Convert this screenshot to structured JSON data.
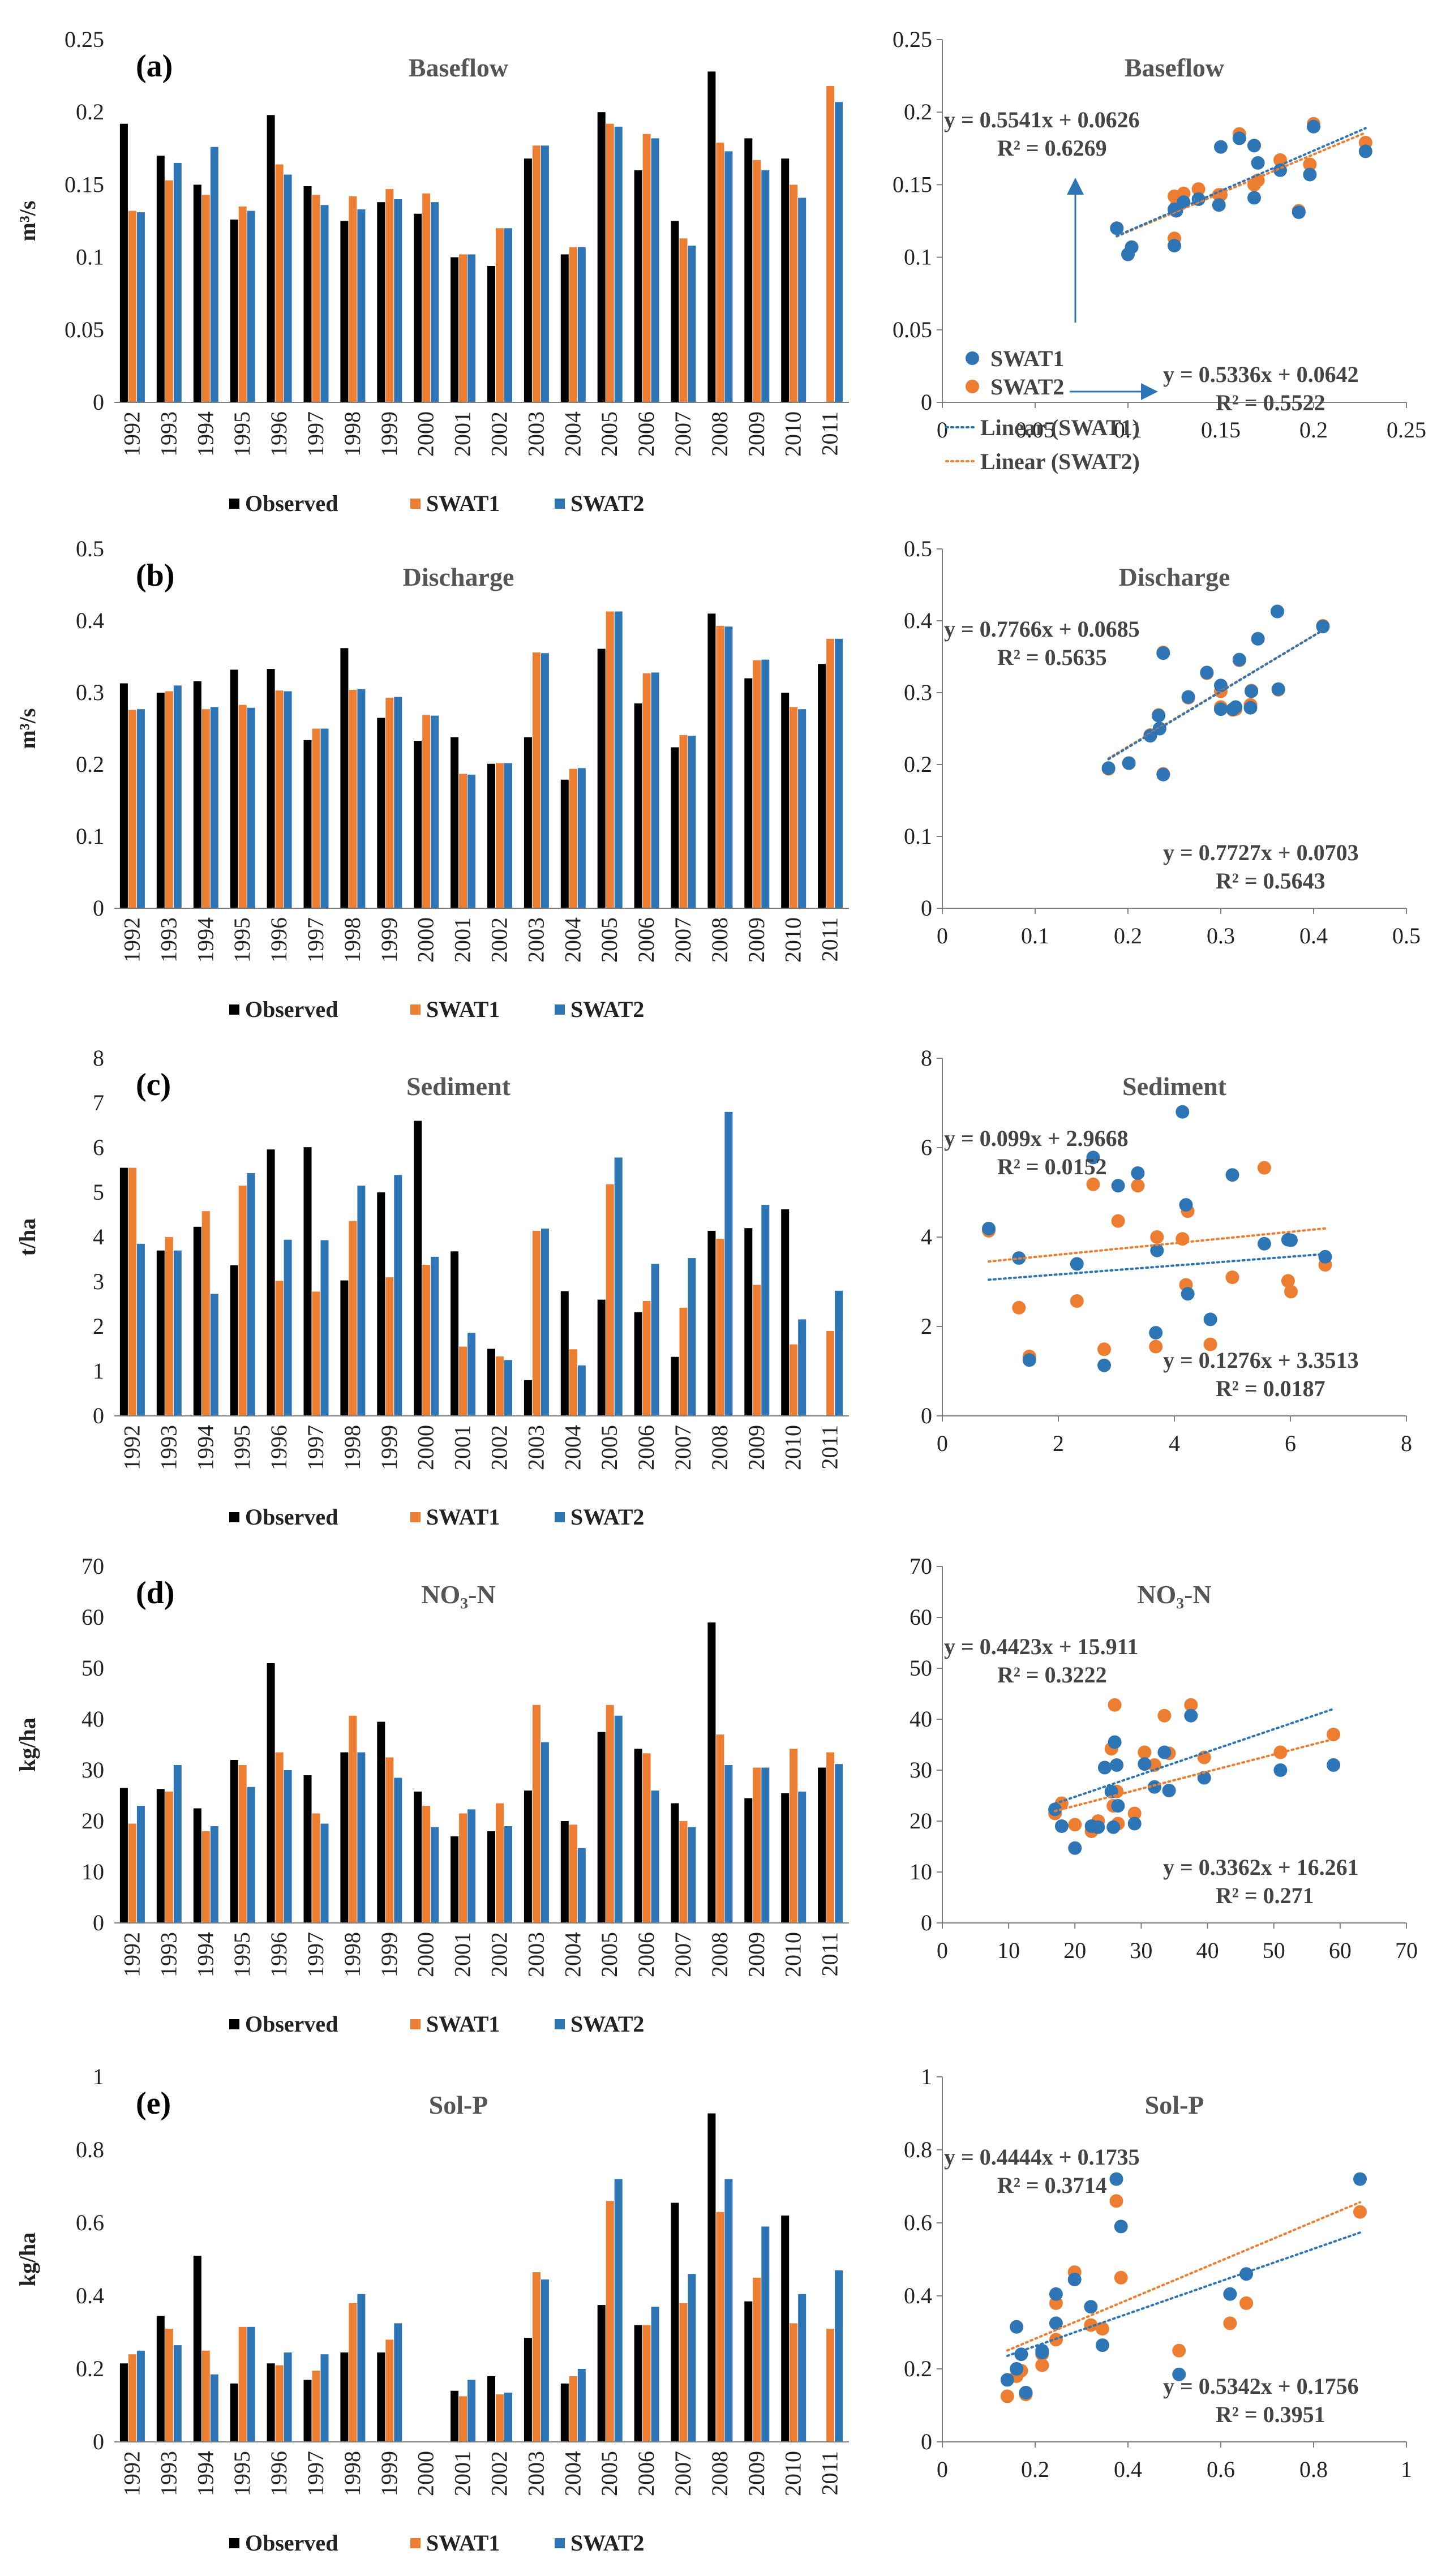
{
  "legend_labels": {
    "observed": "Observed",
    "swat1": "SWAT1",
    "swat2": "SWAT2",
    "linear1": "Linear (SWAT1)",
    "linear2": "Linear (SWAT2)"
  },
  "colors": {
    "observed": "#000000",
    "swat1": "#ED7D31",
    "swat2": "#2E75B6",
    "axis": "#000000",
    "arrow": "#2E75B6"
  },
  "chart_data": [
    {
      "type": "bar",
      "panel": "(a)",
      "title": "Baseflow",
      "ylabel": "m³/s",
      "ylim": [
        0,
        0.25
      ],
      "yticks": [
        "0",
        "0.05",
        "0.1",
        "0.15",
        "0.2",
        "0.25"
      ],
      "categories": [
        "1992",
        "1993",
        "1994",
        "1995",
        "1996",
        "1997",
        "1998",
        "1999",
        "2000",
        "2001",
        "2002",
        "2003",
        "2004",
        "2005",
        "2006",
        "2007",
        "2008",
        "2009",
        "2010",
        "2011"
      ],
      "series": [
        {
          "name": "Observed",
          "values": [
            0.192,
            0.17,
            0.15,
            0.126,
            0.198,
            0.149,
            0.125,
            0.138,
            0.13,
            0.1,
            0.094,
            0.168,
            0.102,
            0.2,
            0.16,
            0.125,
            0.228,
            0.182,
            0.168,
            null
          ]
        },
        {
          "name": "SWAT1",
          "values": [
            0.132,
            0.153,
            0.143,
            0.135,
            0.164,
            0.143,
            0.142,
            0.147,
            0.144,
            0.102,
            0.12,
            0.177,
            0.107,
            0.192,
            0.185,
            0.113,
            0.179,
            0.167,
            0.15,
            0.218
          ]
        },
        {
          "name": "SWAT2",
          "values": [
            0.131,
            0.165,
            0.176,
            0.132,
            0.157,
            0.136,
            0.133,
            0.14,
            0.138,
            0.102,
            0.12,
            0.177,
            0.107,
            0.19,
            0.182,
            0.108,
            0.173,
            0.16,
            0.141,
            0.207
          ]
        }
      ]
    },
    {
      "type": "bar",
      "panel": "(b)",
      "title": "Discharge",
      "ylabel": "m³/s",
      "ylim": [
        0,
        0.5
      ],
      "yticks": [
        "0",
        "0.1",
        "0.2",
        "0.3",
        "0.4",
        "0.5"
      ],
      "categories": [
        "1992",
        "1993",
        "1994",
        "1995",
        "1996",
        "1997",
        "1998",
        "1999",
        "2000",
        "2001",
        "2002",
        "2003",
        "2004",
        "2005",
        "2006",
        "2007",
        "2008",
        "2009",
        "2010",
        "2011"
      ],
      "series": [
        {
          "name": "Observed",
          "values": [
            0.313,
            0.3,
            0.316,
            0.332,
            0.333,
            0.234,
            0.362,
            0.265,
            0.233,
            0.238,
            0.201,
            0.238,
            0.179,
            0.361,
            0.285,
            0.224,
            0.41,
            0.32,
            0.3,
            0.34
          ]
        },
        {
          "name": "SWAT1",
          "values": [
            0.276,
            0.302,
            0.277,
            0.283,
            0.303,
            0.25,
            0.304,
            0.293,
            0.269,
            0.187,
            0.202,
            0.356,
            0.194,
            0.413,
            0.327,
            0.241,
            0.393,
            0.345,
            0.28,
            0.375
          ]
        },
        {
          "name": "SWAT2",
          "values": [
            0.277,
            0.31,
            0.28,
            0.279,
            0.302,
            0.25,
            0.305,
            0.294,
            0.268,
            0.186,
            0.202,
            0.355,
            0.195,
            0.413,
            0.328,
            0.24,
            0.392,
            0.346,
            0.277,
            0.375
          ]
        }
      ]
    },
    {
      "type": "bar",
      "panel": "(c)",
      "title": "Sediment",
      "ylabel": "t/ha",
      "ylim": [
        0,
        8
      ],
      "yticks": [
        "0",
        "1",
        "2",
        "3",
        "4",
        "5",
        "6",
        "7",
        "8"
      ],
      "categories": [
        "1992",
        "1993",
        "1994",
        "1995",
        "1996",
        "1997",
        "1998",
        "1999",
        "2000",
        "2001",
        "2002",
        "2003",
        "2004",
        "2005",
        "2006",
        "2007",
        "2008",
        "2009",
        "2010",
        "2011"
      ],
      "series": [
        {
          "name": "Observed",
          "values": [
            5.55,
            3.7,
            4.23,
            3.37,
            5.96,
            6.01,
            3.03,
            5.0,
            6.6,
            3.68,
            1.5,
            0.8,
            2.79,
            2.6,
            2.32,
            1.32,
            4.14,
            4.2,
            4.62,
            null
          ]
        },
        {
          "name": "SWAT1",
          "values": [
            5.55,
            4.0,
            4.58,
            5.15,
            3.02,
            2.78,
            4.36,
            3.1,
            3.38,
            1.55,
            1.33,
            4.14,
            1.49,
            5.18,
            2.57,
            2.42,
            3.96,
            2.93,
            1.6,
            1.9
          ]
        },
        {
          "name": "SWAT2",
          "values": [
            3.85,
            3.7,
            2.73,
            5.43,
            3.94,
            3.93,
            5.15,
            5.39,
            3.56,
            1.86,
            1.25,
            4.19,
            1.13,
            5.78,
            3.4,
            3.53,
            6.8,
            4.72,
            2.16,
            2.8
          ]
        }
      ]
    },
    {
      "type": "bar",
      "panel": "(d)",
      "title": "NO₃-N",
      "ylabel": "kg/ha",
      "ylim": [
        0,
        70
      ],
      "yticks": [
        "0",
        "10",
        "20",
        "30",
        "40",
        "50",
        "60",
        "70"
      ],
      "categories": [
        "1992",
        "1993",
        "1994",
        "1995",
        "1996",
        "1997",
        "1998",
        "1999",
        "2000",
        "2001",
        "2002",
        "2003",
        "2004",
        "2005",
        "2006",
        "2007",
        "2008",
        "2009",
        "2010",
        "2011"
      ],
      "series": [
        {
          "name": "Observed",
          "values": [
            26.5,
            26.3,
            22.5,
            32.0,
            51.0,
            29.0,
            33.5,
            39.5,
            25.8,
            17.0,
            18.0,
            26.0,
            20.0,
            37.5,
            34.2,
            23.5,
            59.0,
            24.5,
            25.5,
            30.5
          ]
        },
        {
          "name": "SWAT1",
          "values": [
            19.5,
            25.8,
            18.0,
            31.0,
            33.5,
            21.5,
            40.7,
            32.5,
            23.0,
            21.5,
            23.5,
            42.8,
            19.3,
            42.8,
            33.3,
            20.0,
            37.0,
            30.5,
            34.2,
            33.5
          ]
        },
        {
          "name": "SWAT2",
          "values": [
            23.0,
            31.0,
            19.0,
            26.7,
            30.0,
            19.5,
            33.5,
            28.5,
            18.8,
            22.3,
            19.0,
            35.5,
            14.7,
            40.7,
            26.0,
            18.8,
            31.0,
            30.5,
            25.8,
            31.2
          ]
        }
      ]
    },
    {
      "type": "bar",
      "panel": "(e)",
      "title": "Sol-P",
      "ylabel": "kg/ha",
      "ylim": [
        0,
        1
      ],
      "yticks": [
        "0",
        "0.2",
        "0.4",
        "0.6",
        "0.8",
        "1"
      ],
      "categories": [
        "1992",
        "1993",
        "1994",
        "1995",
        "1996",
        "1997",
        "1998",
        "1999",
        "2000",
        "2001",
        "2002",
        "2003",
        "2004",
        "2005",
        "2006",
        "2007",
        "2008",
        "2009",
        "2010",
        "2011"
      ],
      "series": [
        {
          "name": "Observed",
          "values": [
            0.215,
            0.345,
            0.51,
            0.16,
            0.215,
            0.17,
            0.245,
            0.245,
            null,
            0.14,
            0.18,
            0.285,
            0.16,
            0.375,
            0.32,
            0.655,
            0.9,
            0.385,
            0.62,
            null
          ]
        },
        {
          "name": "SWAT1",
          "values": [
            0.24,
            0.31,
            0.25,
            0.315,
            0.21,
            0.195,
            0.38,
            0.28,
            null,
            0.125,
            0.13,
            0.465,
            0.18,
            0.66,
            0.32,
            0.38,
            0.63,
            0.45,
            0.325,
            0.31
          ]
        },
        {
          "name": "SWAT2",
          "values": [
            0.25,
            0.265,
            0.185,
            0.315,
            0.245,
            0.24,
            0.405,
            0.325,
            null,
            0.17,
            0.135,
            0.445,
            0.2,
            0.72,
            0.37,
            0.46,
            0.72,
            0.59,
            0.405,
            0.47
          ]
        }
      ]
    },
    {
      "type": "scatter",
      "title": "Baseflow",
      "xlim": [
        0,
        0.25
      ],
      "ylim": [
        0,
        0.25
      ],
      "xticks": [
        "0",
        "0.05",
        "0.1",
        "0.15",
        "0.2",
        "0.25"
      ],
      "yticks": [
        "0",
        "0.05",
        "0.1",
        "0.15",
        "0.2",
        "0.25"
      ],
      "eq1": "y = 0.5336x + 0.0642",
      "r2_1": "R² = 0.5522",
      "eq2": "y = 0.5541x + 0.0626",
      "r2_2": "R² = 0.6269",
      "fit1": [
        0.5336,
        0.0642
      ],
      "fit2": [
        0.5541,
        0.0626
      ],
      "x": [
        0.192,
        0.17,
        0.15,
        0.126,
        0.198,
        0.149,
        0.125,
        0.138,
        0.13,
        0.1,
        0.094,
        0.168,
        0.102,
        0.2,
        0.16,
        0.125,
        0.228,
        0.182,
        0.168
      ],
      "swat1": [
        0.132,
        0.153,
        0.143,
        0.135,
        0.164,
        0.143,
        0.142,
        0.147,
        0.144,
        0.102,
        0.12,
        0.177,
        0.107,
        0.192,
        0.185,
        0.113,
        0.179,
        0.167,
        0.15
      ],
      "swat2": [
        0.131,
        0.165,
        0.176,
        0.132,
        0.157,
        0.136,
        0.133,
        0.14,
        0.138,
        0.102,
        0.12,
        0.177,
        0.107,
        0.19,
        0.182,
        0.108,
        0.173,
        0.16,
        0.141
      ]
    },
    {
      "type": "scatter",
      "title": "Discharge",
      "xlim": [
        0,
        0.5
      ],
      "ylim": [
        0,
        0.5
      ],
      "xticks": [
        "0",
        "0.1",
        "0.2",
        "0.3",
        "0.4",
        "0.5"
      ],
      "yticks": [
        "0",
        "0.1",
        "0.2",
        "0.3",
        "0.4",
        "0.5"
      ],
      "eq1": "y = 0.7727x + 0.0703",
      "r2_1": "R² = 0.5643",
      "eq2": "y = 0.7766x + 0.0685",
      "r2_2": "R² = 0.5635",
      "fit1": [
        0.7727,
        0.0703
      ],
      "fit2": [
        0.7766,
        0.0685
      ],
      "x": [
        0.313,
        0.3,
        0.316,
        0.332,
        0.333,
        0.234,
        0.362,
        0.265,
        0.233,
        0.238,
        0.201,
        0.238,
        0.179,
        0.361,
        0.285,
        0.224,
        0.41,
        0.32,
        0.3,
        0.34
      ],
      "swat1": [
        0.276,
        0.302,
        0.277,
        0.283,
        0.303,
        0.25,
        0.304,
        0.293,
        0.269,
        0.187,
        0.202,
        0.356,
        0.194,
        0.413,
        0.327,
        0.241,
        0.393,
        0.345,
        0.28,
        0.375
      ],
      "swat2": [
        0.277,
        0.31,
        0.28,
        0.279,
        0.302,
        0.25,
        0.305,
        0.294,
        0.268,
        0.186,
        0.202,
        0.355,
        0.195,
        0.413,
        0.328,
        0.24,
        0.392,
        0.346,
        0.277,
        0.375
      ]
    },
    {
      "type": "scatter",
      "title": "Sediment",
      "xlim": [
        0,
        8
      ],
      "ylim": [
        0,
        8
      ],
      "xticks": [
        "0",
        "2",
        "4",
        "6",
        "8"
      ],
      "yticks": [
        "0",
        "2",
        "4",
        "6",
        "8"
      ],
      "eq1": "y = 0.1276x + 3.3513",
      "r2_1": "R² = 0.0187",
      "eq2": "y = 0.099x + 2.9668",
      "r2_2": "R² = 0.0152",
      "fit1": [
        0.1276,
        3.3513
      ],
      "fit2": [
        0.099,
        2.9668
      ],
      "x": [
        5.55,
        3.7,
        4.23,
        3.37,
        5.96,
        6.01,
        3.03,
        5.0,
        6.6,
        3.68,
        1.5,
        0.8,
        2.79,
        2.6,
        2.32,
        1.32,
        4.14,
        4.2,
        4.62
      ],
      "swat1": [
        5.55,
        4.0,
        4.58,
        5.15,
        3.02,
        2.78,
        4.36,
        3.1,
        3.38,
        1.55,
        1.33,
        4.14,
        1.49,
        5.18,
        2.57,
        2.42,
        3.96,
        2.93,
        1.6
      ],
      "swat2": [
        3.85,
        3.7,
        2.73,
        5.43,
        3.94,
        3.93,
        5.15,
        5.39,
        3.56,
        1.86,
        1.25,
        4.19,
        1.13,
        5.78,
        3.4,
        3.53,
        6.8,
        4.72,
        2.16
      ]
    },
    {
      "type": "scatter",
      "title": "NO₃-N",
      "xlim": [
        0,
        70
      ],
      "ylim": [
        0,
        70
      ],
      "xticks": [
        "0",
        "10",
        "20",
        "30",
        "40",
        "50",
        "60",
        "70"
      ],
      "yticks": [
        "0",
        "10",
        "20",
        "30",
        "40",
        "50",
        "60",
        "70"
      ],
      "eq1": "y = 0.3362x + 16.261",
      "r2_1": "R² = 0.271",
      "eq2": "y = 0.4423x + 15.911",
      "r2_2": "R² = 0.3222",
      "fit1": [
        0.3362,
        16.261
      ],
      "fit2": [
        0.4423,
        15.911
      ],
      "x": [
        26.5,
        26.3,
        22.5,
        32.0,
        51.0,
        29.0,
        33.5,
        39.5,
        25.8,
        17.0,
        18.0,
        26.0,
        20.0,
        37.5,
        34.2,
        23.5,
        59.0,
        24.5,
        25.5,
        30.5
      ],
      "swat1": [
        19.5,
        25.8,
        18.0,
        31.0,
        33.5,
        21.5,
        40.7,
        32.5,
        23.0,
        21.5,
        23.5,
        42.8,
        19.3,
        42.8,
        33.3,
        20.0,
        37.0,
        30.5,
        34.2,
        33.5
      ],
      "swat2": [
        23.0,
        31.0,
        19.0,
        26.7,
        30.0,
        19.5,
        33.5,
        28.5,
        18.8,
        22.3,
        19.0,
        35.5,
        14.7,
        40.7,
        26.0,
        18.8,
        31.0,
        30.5,
        25.8,
        31.2
      ]
    },
    {
      "type": "scatter",
      "title": "Sol-P",
      "xlim": [
        0,
        1
      ],
      "ylim": [
        0,
        1
      ],
      "xticks": [
        "0",
        "0.2",
        "0.4",
        "0.6",
        "0.8",
        "1"
      ],
      "yticks": [
        "0",
        "0.2",
        "0.4",
        "0.6",
        "0.8",
        "1"
      ],
      "eq1": "y = 0.5342x + 0.1756",
      "r2_1": "R² = 0.3951",
      "eq2": "y = 0.4444x + 0.1735",
      "r2_2": "R² = 0.3714",
      "fit1": [
        0.5342,
        0.1756
      ],
      "fit2": [
        0.4444,
        0.1735
      ],
      "x": [
        0.215,
        0.345,
        0.51,
        0.16,
        0.215,
        0.17,
        0.245,
        0.245,
        0.14,
        0.18,
        0.285,
        0.16,
        0.375,
        0.32,
        0.655,
        0.9,
        0.385,
        0.62
      ],
      "swat1": [
        0.24,
        0.31,
        0.25,
        0.315,
        0.21,
        0.195,
        0.38,
        0.28,
        0.125,
        0.13,
        0.465,
        0.18,
        0.66,
        0.32,
        0.38,
        0.63,
        0.45,
        0.325
      ],
      "swat2": [
        0.25,
        0.265,
        0.185,
        0.315,
        0.245,
        0.24,
        0.405,
        0.325,
        0.17,
        0.135,
        0.445,
        0.2,
        0.72,
        0.37,
        0.46,
        0.72,
        0.59,
        0.405
      ]
    }
  ]
}
